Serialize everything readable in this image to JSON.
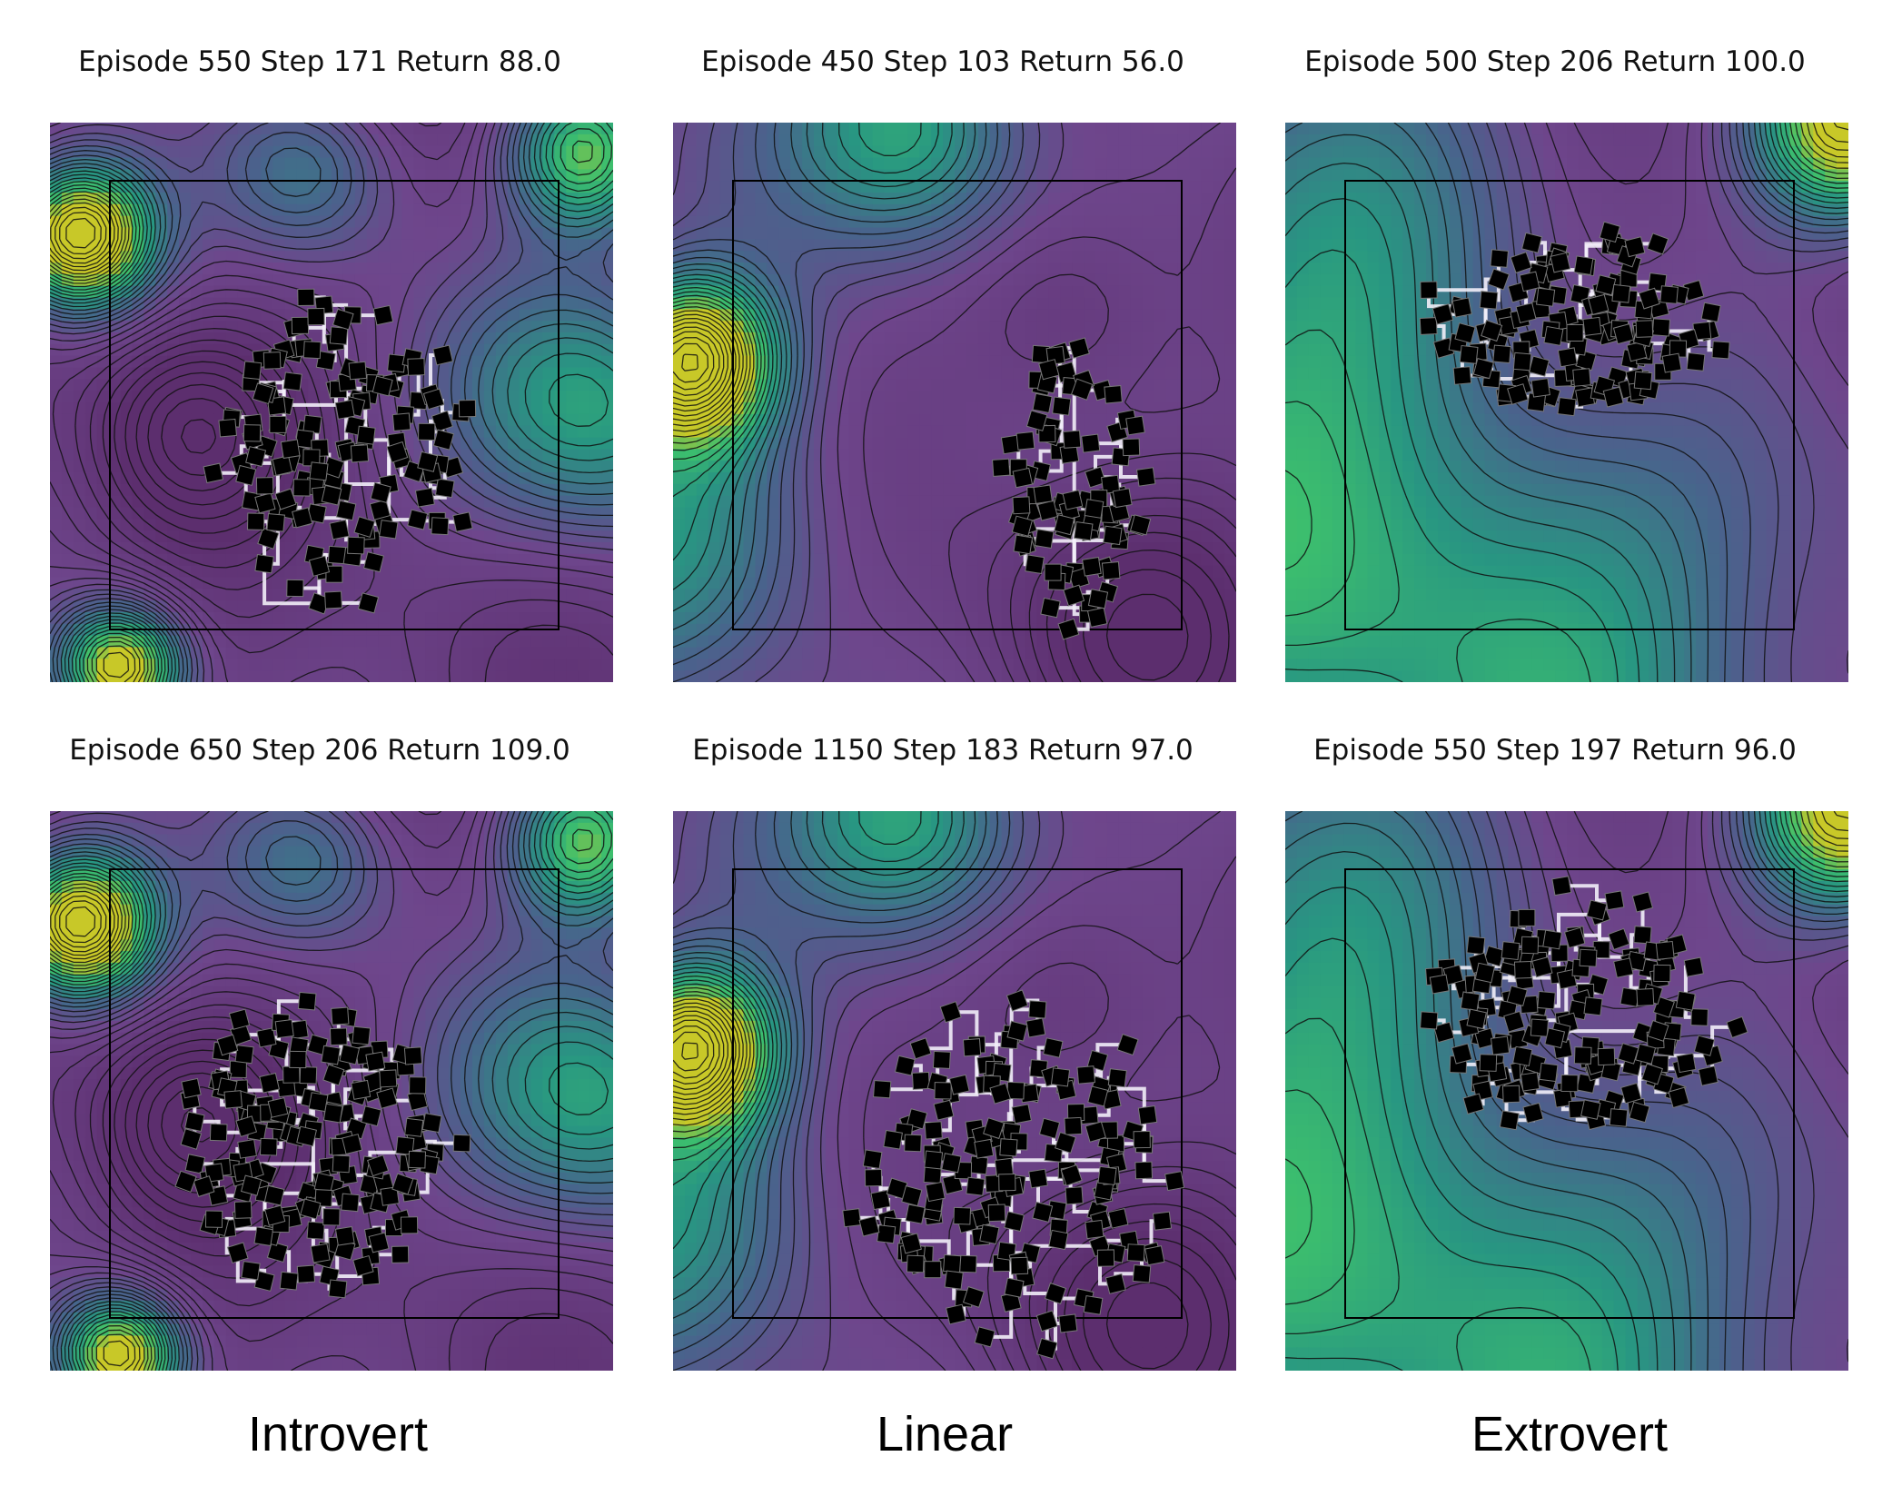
{
  "chart_data": [
    {
      "type": "heatmap",
      "title": "Episode 550 Step 171 Return 88.0",
      "column": "Introvert",
      "field": {
        "base": 0.18,
        "blobs": [
          [
            0.05,
            0.2,
            0.09,
            1.0
          ],
          [
            0.12,
            0.97,
            0.08,
            0.9
          ],
          [
            0.95,
            0.05,
            0.1,
            0.7
          ],
          [
            0.97,
            0.5,
            0.18,
            0.55
          ],
          [
            0.45,
            0.08,
            0.12,
            0.4
          ],
          [
            0.25,
            0.55,
            0.12,
            -0.3
          ]
        ]
      },
      "cluster": {
        "cx": 0.52,
        "cy": 0.58,
        "rx": 0.2,
        "ry": 0.26,
        "count": 150,
        "seed": 11
      }
    },
    {
      "type": "heatmap",
      "title": "Episode 450 Step 103 Return 56.0",
      "column": "Linear",
      "field": {
        "base": 0.28,
        "blobs": [
          [
            0.03,
            0.42,
            0.1,
            0.95
          ],
          [
            0.42,
            0.0,
            0.15,
            0.5
          ],
          [
            0.0,
            0.7,
            0.2,
            0.35
          ],
          [
            0.8,
            0.9,
            0.2,
            -0.3
          ],
          [
            0.7,
            0.35,
            0.14,
            -0.2
          ]
        ]
      },
      "cluster": {
        "cx": 0.71,
        "cy": 0.65,
        "rx": 0.12,
        "ry": 0.25,
        "count": 95,
        "seed": 23
      }
    },
    {
      "type": "heatmap",
      "title": "Episode 500 Step 206 Return 100.0",
      "column": "Extrovert",
      "field": {
        "base": 0.22,
        "blobs": [
          [
            1.0,
            0.0,
            0.12,
            0.9
          ],
          [
            0.0,
            0.5,
            0.45,
            0.5
          ],
          [
            0.5,
            1.0,
            0.4,
            0.35
          ],
          [
            0.58,
            0.38,
            0.22,
            -0.25
          ]
        ]
      },
      "cluster": {
        "cx": 0.52,
        "cy": 0.36,
        "rx": 0.24,
        "ry": 0.15,
        "count": 150,
        "seed": 37
      }
    },
    {
      "type": "heatmap",
      "title": "Episode 650 Step 206 Return 109.0",
      "column": "Introvert",
      "field": {
        "base": 0.18,
        "blobs": [
          [
            0.05,
            0.2,
            0.09,
            1.0
          ],
          [
            0.12,
            0.97,
            0.08,
            0.9
          ],
          [
            0.95,
            0.05,
            0.1,
            0.7
          ],
          [
            0.97,
            0.5,
            0.18,
            0.55
          ],
          [
            0.45,
            0.08,
            0.12,
            0.4
          ],
          [
            0.25,
            0.55,
            0.12,
            -0.3
          ]
        ]
      },
      "cluster": {
        "cx": 0.47,
        "cy": 0.6,
        "rx": 0.24,
        "ry": 0.25,
        "count": 190,
        "seed": 53
      }
    },
    {
      "type": "heatmap",
      "title": "Episode 1150 Step 183 Return 97.0",
      "column": "Linear",
      "field": {
        "base": 0.28,
        "blobs": [
          [
            0.03,
            0.42,
            0.1,
            0.95
          ],
          [
            0.42,
            0.0,
            0.15,
            0.5
          ],
          [
            0.0,
            0.7,
            0.2,
            0.35
          ],
          [
            0.8,
            0.9,
            0.2,
            -0.3
          ],
          [
            0.7,
            0.35,
            0.14,
            -0.2
          ]
        ]
      },
      "cluster": {
        "cx": 0.62,
        "cy": 0.66,
        "rx": 0.28,
        "ry": 0.28,
        "count": 185,
        "seed": 71
      }
    },
    {
      "type": "heatmap",
      "title": "Episode 550 Step 197 Return 96.0",
      "column": "Extrovert",
      "field": {
        "base": 0.22,
        "blobs": [
          [
            1.0,
            0.0,
            0.12,
            0.9
          ],
          [
            0.0,
            0.5,
            0.45,
            0.5
          ],
          [
            0.5,
            1.0,
            0.4,
            0.35
          ],
          [
            0.58,
            0.38,
            0.22,
            -0.25
          ]
        ]
      },
      "cluster": {
        "cx": 0.52,
        "cy": 0.36,
        "rx": 0.25,
        "ry": 0.2,
        "count": 175,
        "seed": 89
      }
    }
  ],
  "columns": [
    "Introvert",
    "Linear",
    "Extrovert"
  ]
}
